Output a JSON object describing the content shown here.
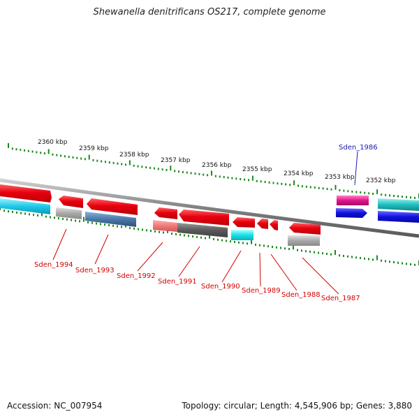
{
  "title": "Shewanella denitrificans OS217, complete genome",
  "footer": {
    "accession": "Accession: NC_007954",
    "summary": "Topology: circular; Length: 4,545,906 bp; Genes: 3,880"
  },
  "ticks": [
    "2360 kbp",
    "2359 kbp",
    "2358 kbp",
    "2357 kbp",
    "2356 kbp",
    "2355 kbp",
    "2354 kbp",
    "2353 kbp",
    "2352 kbp"
  ],
  "gene_labels": {
    "top": "Sden_1986",
    "bottom": [
      "Sden_1994",
      "Sden_1993",
      "Sden_1992",
      "Sden_1991",
      "Sden_1990",
      "Sden_1989",
      "Sden_1988",
      "Sden_1987"
    ]
  },
  "colors": {
    "red": "#e8000f",
    "cyan": "#1ec8e8",
    "grey": "#a8a8a8",
    "steel": "#4a78a8",
    "pink": "#f07878",
    "dark": "#5a5a5a",
    "aqua": "#18e0e8",
    "magenta": "#e0158a",
    "blue": "#1010e0",
    "teal": "#20c0c0",
    "tick": "#1a8a1a",
    "label_red": "#d40000",
    "label_blue": "#1a1ab0"
  }
}
